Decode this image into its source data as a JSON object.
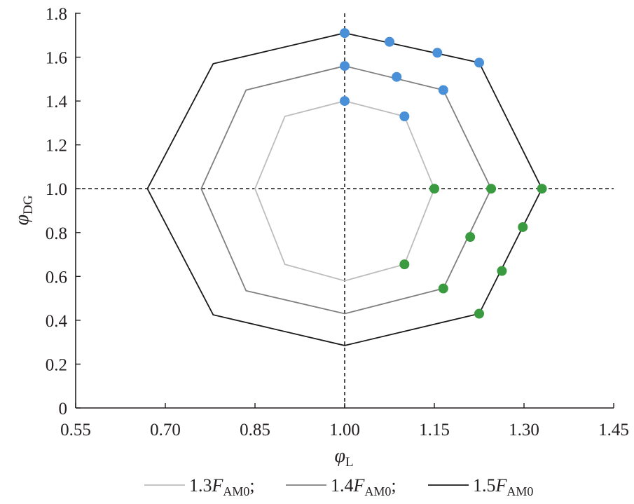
{
  "chart_data": {
    "type": "line",
    "title": "",
    "xlabel": {
      "symbol": "φ",
      "subscript": "L"
    },
    "ylabel": {
      "symbol": "φ",
      "subscript": "DG"
    },
    "xlim": [
      0.55,
      1.45
    ],
    "ylim": [
      0,
      1.8
    ],
    "xticks": [
      "0.55",
      "0.70",
      "0.85",
      "1.00",
      "1.15",
      "1.30",
      "1.45"
    ],
    "yticks": [
      "0",
      "0.2",
      "0.4",
      "0.6",
      "0.8",
      "1.0",
      "1.2",
      "1.4",
      "1.6",
      "1.8"
    ],
    "grid": false,
    "reference_lines": {
      "x": 1.0,
      "y": 1.0,
      "style": "dashed"
    },
    "legend_position": "bottom",
    "series": [
      {
        "name": "1.3F_AM0",
        "legend": {
          "coef": "1.3",
          "symbol": "F",
          "subscript": "AM0",
          "suffix": ";"
        },
        "color": "#bdbdbd",
        "points": [
          [
            1.0,
            1.4
          ],
          [
            1.1,
            1.33
          ],
          [
            1.15,
            1.0
          ],
          [
            1.1,
            0.655
          ],
          [
            1.0,
            0.58
          ],
          [
            0.9,
            0.655
          ],
          [
            0.85,
            1.0
          ],
          [
            0.9,
            1.33
          ]
        ]
      },
      {
        "name": "1.4F_AM0",
        "legend": {
          "coef": "1.4",
          "symbol": "F",
          "subscript": "AM0",
          "suffix": ";"
        },
        "color": "#7f7f7f",
        "points": [
          [
            1.0,
            1.56
          ],
          [
            1.165,
            1.45
          ],
          [
            1.245,
            1.0
          ],
          [
            1.165,
            0.545
          ],
          [
            1.0,
            0.43
          ],
          [
            0.835,
            0.535
          ],
          [
            0.76,
            1.0
          ],
          [
            0.835,
            1.45
          ]
        ]
      },
      {
        "name": "1.5F_AM0",
        "legend": {
          "coef": "1.5",
          "symbol": "F",
          "subscript": "AM0",
          "suffix": ""
        },
        "color": "#1a1a1a",
        "points": [
          [
            1.0,
            1.71
          ],
          [
            1.225,
            1.575
          ],
          [
            1.33,
            1.0
          ],
          [
            1.225,
            0.43
          ],
          [
            1.0,
            0.285
          ],
          [
            0.78,
            0.425
          ],
          [
            0.67,
            1.0
          ],
          [
            0.78,
            1.57
          ]
        ]
      }
    ],
    "markers": {
      "blue": {
        "color": "#4a90d9",
        "points": [
          [
            1.0,
            1.71
          ],
          [
            1.075,
            1.67
          ],
          [
            1.155,
            1.62
          ],
          [
            1.225,
            1.575
          ],
          [
            1.0,
            1.56
          ],
          [
            1.087,
            1.51
          ],
          [
            1.165,
            1.45
          ],
          [
            1.0,
            1.4
          ],
          [
            1.1,
            1.33
          ]
        ]
      },
      "green": {
        "color": "#3a9a3f",
        "points": [
          [
            1.15,
            1.0
          ],
          [
            1.245,
            1.0
          ],
          [
            1.33,
            1.0
          ],
          [
            1.1,
            0.655
          ],
          [
            1.165,
            0.545
          ],
          [
            1.21,
            0.78
          ],
          [
            1.298,
            0.825
          ],
          [
            1.263,
            0.625
          ],
          [
            1.225,
            0.43
          ]
        ]
      }
    }
  }
}
